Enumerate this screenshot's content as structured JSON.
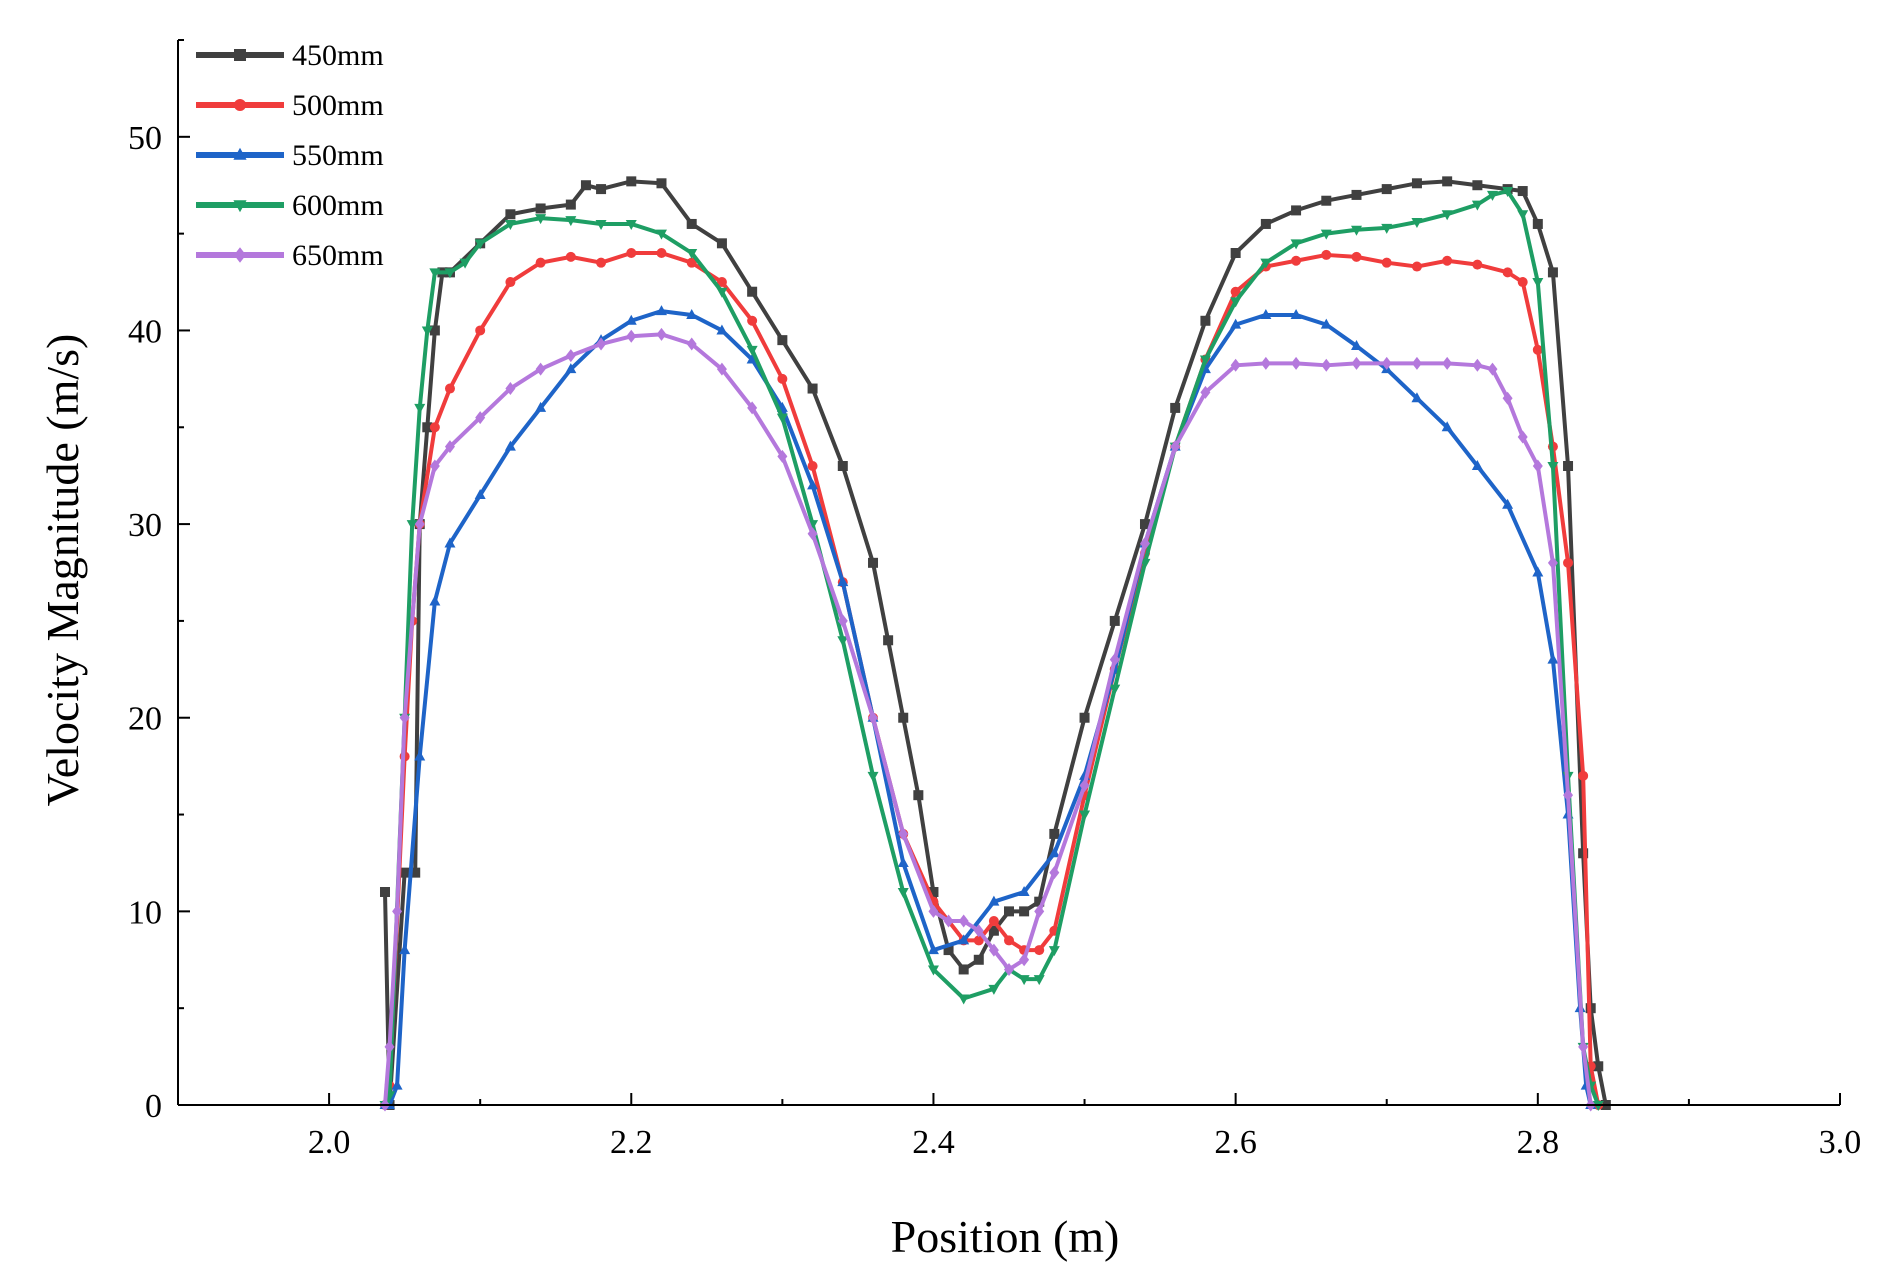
{
  "chart_data": {
    "type": "line",
    "title": "",
    "xlabel": "Position (m)",
    "ylabel": "Velocity Magnitude (m/s)",
    "xlim": [
      1.9,
      3.0
    ],
    "ylim": [
      0,
      55
    ],
    "xticks": [
      2.0,
      2.2,
      2.4,
      2.6,
      2.8,
      3.0
    ],
    "xtick_labels": [
      "2.0",
      "2.2",
      "2.4",
      "2.6",
      "2.8",
      "3.0"
    ],
    "yticks": [
      0,
      10,
      20,
      30,
      40,
      50
    ],
    "ytick_labels": [
      "0",
      "10",
      "20",
      "30",
      "40",
      "50"
    ],
    "legend_position": "top-left",
    "grid": false,
    "series": [
      {
        "name": "450mm",
        "color": "#404040",
        "marker": "square",
        "x": [
          2.037,
          2.04,
          2.05,
          2.057,
          2.06,
          2.065,
          2.07,
          2.075,
          2.08,
          2.1,
          2.12,
          2.14,
          2.16,
          2.17,
          2.18,
          2.2,
          2.22,
          2.24,
          2.26,
          2.28,
          2.3,
          2.32,
          2.34,
          2.36,
          2.37,
          2.38,
          2.39,
          2.4,
          2.41,
          2.42,
          2.43,
          2.44,
          2.45,
          2.46,
          2.47,
          2.48,
          2.5,
          2.52,
          2.54,
          2.56,
          2.58,
          2.6,
          2.62,
          2.64,
          2.66,
          2.68,
          2.7,
          2.72,
          2.74,
          2.76,
          2.78,
          2.79,
          2.8,
          2.81,
          2.82,
          2.83,
          2.835,
          2.84,
          2.845
        ],
        "y": [
          11,
          0,
          12,
          12,
          30,
          35,
          40,
          43,
          43,
          44.5,
          46,
          46.3,
          46.5,
          47.5,
          47.3,
          47.7,
          47.6,
          45.5,
          44.5,
          42,
          39.5,
          37,
          33,
          28,
          24,
          20,
          16,
          11,
          8,
          7,
          7.5,
          9,
          10,
          10,
          10.5,
          14,
          20,
          25,
          30,
          36,
          40.5,
          44,
          45.5,
          46.2,
          46.7,
          47,
          47.3,
          47.6,
          47.7,
          47.5,
          47.3,
          47.2,
          45.5,
          43,
          33,
          13,
          5,
          2,
          0
        ]
      },
      {
        "name": "500mm",
        "color": "#f03c3c",
        "marker": "circle",
        "x": [
          2.037,
          2.04,
          2.05,
          2.055,
          2.06,
          2.07,
          2.08,
          2.1,
          2.12,
          2.14,
          2.16,
          2.18,
          2.2,
          2.22,
          2.24,
          2.26,
          2.28,
          2.3,
          2.32,
          2.34,
          2.36,
          2.38,
          2.4,
          2.42,
          2.43,
          2.44,
          2.45,
          2.46,
          2.47,
          2.48,
          2.5,
          2.52,
          2.54,
          2.56,
          2.58,
          2.6,
          2.62,
          2.64,
          2.66,
          2.68,
          2.7,
          2.72,
          2.74,
          2.76,
          2.78,
          2.79,
          2.8,
          2.81,
          2.82,
          2.83,
          2.835,
          2.84
        ],
        "y": [
          0,
          1,
          18,
          25,
          30,
          35,
          37,
          40,
          42.5,
          43.5,
          43.8,
          43.5,
          44,
          44,
          43.5,
          42.5,
          40.5,
          37.5,
          33,
          27,
          20,
          14,
          10.5,
          8.5,
          8.5,
          9.5,
          8.5,
          8,
          8,
          9,
          16,
          22.5,
          28.5,
          34,
          38.5,
          42,
          43.3,
          43.6,
          43.9,
          43.8,
          43.5,
          43.3,
          43.6,
          43.4,
          43,
          42.5,
          39,
          34,
          28,
          17,
          2,
          0
        ]
      },
      {
        "name": "550mm",
        "color": "#1e64c8",
        "marker": "triangle-up",
        "x": [
          2.037,
          2.04,
          2.045,
          2.05,
          2.06,
          2.07,
          2.08,
          2.1,
          2.12,
          2.14,
          2.16,
          2.18,
          2.2,
          2.22,
          2.24,
          2.26,
          2.28,
          2.3,
          2.32,
          2.34,
          2.36,
          2.38,
          2.4,
          2.42,
          2.44,
          2.46,
          2.48,
          2.5,
          2.52,
          2.54,
          2.56,
          2.58,
          2.6,
          2.62,
          2.64,
          2.66,
          2.68,
          2.7,
          2.72,
          2.74,
          2.76,
          2.78,
          2.8,
          2.81,
          2.82,
          2.828,
          2.832,
          2.835
        ],
        "y": [
          0,
          0,
          1,
          8,
          18,
          26,
          29,
          31.5,
          34,
          36,
          38,
          39.5,
          40.5,
          41,
          40.8,
          40,
          38.5,
          36,
          32,
          27,
          20,
          12.5,
          8,
          8.5,
          10.5,
          11,
          13,
          17,
          22.5,
          29,
          34,
          38,
          40.3,
          40.8,
          40.8,
          40.3,
          39.2,
          38,
          36.5,
          35,
          33,
          31,
          27.5,
          23,
          15,
          5,
          1,
          0
        ]
      },
      {
        "name": "600mm",
        "color": "#1e9e64",
        "marker": "triangle-down",
        "x": [
          2.037,
          2.04,
          2.05,
          2.055,
          2.06,
          2.065,
          2.07,
          2.08,
          2.09,
          2.1,
          2.12,
          2.14,
          2.16,
          2.18,
          2.2,
          2.22,
          2.24,
          2.26,
          2.28,
          2.3,
          2.32,
          2.34,
          2.36,
          2.38,
          2.4,
          2.42,
          2.44,
          2.45,
          2.46,
          2.47,
          2.48,
          2.5,
          2.52,
          2.54,
          2.56,
          2.58,
          2.6,
          2.62,
          2.64,
          2.66,
          2.68,
          2.7,
          2.72,
          2.74,
          2.76,
          2.77,
          2.78,
          2.79,
          2.8,
          2.81,
          2.82,
          2.83,
          2.835,
          2.84
        ],
        "y": [
          0,
          0.5,
          20,
          30,
          36,
          40,
          43,
          43,
          43.5,
          44.5,
          45.5,
          45.8,
          45.7,
          45.5,
          45.5,
          45,
          44,
          42,
          39,
          35.5,
          30,
          24,
          17,
          11,
          7,
          5.5,
          6,
          7,
          6.5,
          6.5,
          8,
          15,
          21.5,
          28,
          34,
          38.5,
          41.5,
          43.5,
          44.5,
          45,
          45.2,
          45.3,
          45.6,
          46,
          46.5,
          47,
          47.2,
          46,
          42.5,
          33,
          17,
          3,
          1,
          0
        ]
      },
      {
        "name": "650mm",
        "color": "#b478dc",
        "marker": "diamond",
        "x": [
          2.037,
          2.04,
          2.045,
          2.05,
          2.06,
          2.07,
          2.08,
          2.1,
          2.12,
          2.14,
          2.16,
          2.18,
          2.2,
          2.22,
          2.24,
          2.26,
          2.28,
          2.3,
          2.32,
          2.34,
          2.36,
          2.38,
          2.4,
          2.41,
          2.42,
          2.43,
          2.44,
          2.45,
          2.46,
          2.47,
          2.48,
          2.5,
          2.52,
          2.54,
          2.56,
          2.58,
          2.6,
          2.62,
          2.64,
          2.66,
          2.68,
          2.7,
          2.72,
          2.74,
          2.76,
          2.77,
          2.78,
          2.79,
          2.8,
          2.81,
          2.82,
          2.83,
          2.835
        ],
        "y": [
          0,
          3,
          10,
          20,
          30,
          33,
          34,
          35.5,
          37,
          38,
          38.7,
          39.3,
          39.7,
          39.8,
          39.3,
          38,
          36,
          33.5,
          29.5,
          25,
          20,
          14,
          10,
          9.5,
          9.5,
          9,
          8,
          7,
          7.5,
          10,
          12,
          16.5,
          23,
          29,
          34,
          36.8,
          38.2,
          38.3,
          38.3,
          38.2,
          38.3,
          38.3,
          38.3,
          38.3,
          38.2,
          38,
          36.5,
          34.5,
          33,
          28,
          16,
          3,
          0
        ]
      }
    ]
  }
}
